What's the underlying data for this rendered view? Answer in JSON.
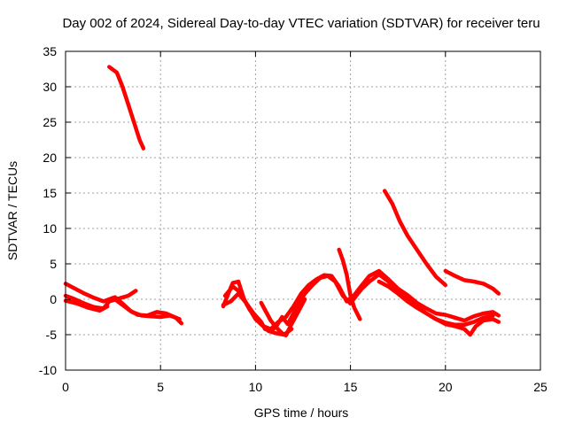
{
  "chart_data": {
    "type": "line",
    "title": "Day 002 of 2024, Sidereal Day-to-day VTEC variation (SDTVAR) for receiver teru",
    "xlabel": "GPS time / hours",
    "ylabel": "SDTVAR / TECUs",
    "xlim": [
      0,
      25
    ],
    "ylim": [
      -10,
      35
    ],
    "xticks": [
      0,
      5,
      10,
      15,
      20,
      25
    ],
    "yticks": [
      -10,
      -5,
      0,
      5,
      10,
      15,
      20,
      25,
      30,
      35
    ],
    "grid": true,
    "legend": "none",
    "color": "#ff0000",
    "series": [
      {
        "name": "s1",
        "x": [
          2.3,
          2.7,
          3.0,
          3.3,
          3.6,
          3.9,
          4.1
        ],
        "y": [
          32.8,
          32.0,
          30.0,
          27.5,
          25.0,
          22.5,
          21.3
        ]
      },
      {
        "name": "s2",
        "x": [
          0.0,
          0.5,
          1.0,
          1.5,
          2.0,
          2.5,
          3.0,
          3.5,
          4.0,
          4.5,
          5.0,
          5.5,
          6.0
        ],
        "y": [
          2.2,
          1.5,
          0.8,
          0.2,
          -0.3,
          0.2,
          -0.8,
          -1.8,
          -2.3,
          -2.4,
          -2.5,
          -2.3,
          -2.8
        ]
      },
      {
        "name": "s3",
        "x": [
          0.0,
          0.5,
          1.0,
          1.5,
          2.0,
          2.3,
          2.8,
          3.3,
          3.7
        ],
        "y": [
          0.5,
          0.0,
          -0.6,
          -1.1,
          -1.3,
          -0.3,
          0.1,
          0.5,
          1.2
        ]
      },
      {
        "name": "s4",
        "x": [
          0.0,
          0.6,
          1.2,
          1.8,
          2.2
        ],
        "y": [
          -0.2,
          -0.6,
          -1.2,
          -1.6,
          -1.0
        ]
      },
      {
        "name": "s5",
        "x": [
          2.6,
          3.0,
          3.4,
          3.8,
          4.3,
          4.8,
          5.3,
          5.8,
          6.1
        ],
        "y": [
          0.3,
          -0.6,
          -1.6,
          -2.2,
          -2.3,
          -1.8,
          -2.0,
          -2.6,
          -3.4
        ]
      },
      {
        "name": "s6",
        "x": [
          8.3,
          8.6,
          8.8,
          9.1,
          9.4,
          9.7,
          10.0,
          10.3,
          10.5,
          10.8,
          11.1,
          11.4,
          11.7,
          12.0,
          12.3,
          12.6,
          13.0,
          13.4,
          13.8,
          14.2,
          14.6,
          15.0,
          15.3,
          15.6,
          16.0,
          16.5,
          17.0,
          17.5,
          18.0,
          18.5,
          19.0,
          19.5,
          20.0,
          20.5,
          21.0,
          21.5,
          22.0,
          22.5
        ],
        "y": [
          -1.0,
          1.0,
          2.3,
          2.5,
          0.0,
          -1.5,
          -2.3,
          -3.2,
          -4.2,
          -4.5,
          -3.8,
          -2.5,
          -3.5,
          -2.0,
          -0.5,
          0.8,
          2.0,
          3.0,
          3.3,
          2.5,
          0.5,
          -0.6,
          0.5,
          1.5,
          2.5,
          3.5,
          2.5,
          1.0,
          0.0,
          -1.0,
          -2.0,
          -2.8,
          -3.3,
          -3.6,
          -3.6,
          -3.2,
          -2.6,
          -2.3
        ]
      },
      {
        "name": "s7",
        "x": [
          8.4,
          8.8,
          9.2,
          9.6,
          10.0,
          10.4,
          10.8,
          11.2,
          11.6,
          12.0,
          12.4,
          12.8,
          13.2,
          13.6,
          14.0,
          14.4,
          14.8,
          15.2,
          15.6,
          16.0,
          16.5,
          17.0,
          17.5,
          18.0,
          18.5,
          19.0,
          19.5,
          20.0,
          20.5,
          21.0,
          21.5,
          22.0,
          22.5,
          22.8
        ],
        "y": [
          0.5,
          1.8,
          1.0,
          -1.0,
          -2.8,
          -3.8,
          -4.2,
          -3.2,
          -2.5,
          -1.0,
          0.8,
          2.0,
          2.8,
          3.4,
          3.3,
          1.8,
          -0.3,
          0.6,
          2.0,
          3.3,
          4.0,
          2.8,
          1.5,
          0.6,
          -0.5,
          -1.3,
          -2.0,
          -2.2,
          -2.6,
          -3.0,
          -2.4,
          -2.0,
          -1.8,
          -2.3
        ]
      },
      {
        "name": "s8",
        "x": [
          8.3,
          8.7,
          9.1,
          9.5,
          9.9,
          10.3,
          10.7,
          11.1,
          11.5,
          11.9
        ],
        "y": [
          -0.8,
          -0.3,
          0.8,
          -0.5,
          -2.0,
          -3.5,
          -4.5,
          -4.8,
          -5.0,
          -4.2
        ]
      },
      {
        "name": "s9",
        "x": [
          10.3,
          10.5,
          10.8,
          11.1,
          11.4,
          11.6,
          11.9,
          12.3,
          12.6
        ],
        "y": [
          -0.5,
          -1.5,
          -3.0,
          -4.0,
          -4.8,
          -5.1,
          -3.5,
          -1.5,
          0.0
        ]
      },
      {
        "name": "s10",
        "x": [
          14.4,
          14.6,
          14.8,
          15.0,
          15.2,
          15.5
        ],
        "y": [
          7.0,
          5.5,
          3.5,
          0.5,
          -1.2,
          -2.8
        ]
      },
      {
        "name": "s11",
        "x": [
          16.8,
          17.2,
          17.6,
          18.0,
          18.5,
          19.0,
          19.5,
          20.0
        ],
        "y": [
          15.3,
          13.5,
          11.0,
          9.0,
          7.0,
          5.0,
          3.2,
          2.0
        ]
      },
      {
        "name": "s12",
        "x": [
          20.0,
          20.5,
          21.0,
          21.5,
          22.0,
          22.5,
          22.8
        ],
        "y": [
          4.0,
          3.3,
          2.7,
          2.5,
          2.2,
          1.5,
          0.8
        ]
      },
      {
        "name": "s13",
        "x": [
          16.5,
          17.0,
          17.5,
          18.0,
          18.5,
          19.0,
          19.5,
          20.0,
          20.5,
          21.0,
          21.3,
          21.6,
          22.0,
          22.5,
          22.8
        ],
        "y": [
          2.5,
          1.8,
          0.8,
          -0.3,
          -1.2,
          -2.0,
          -2.8,
          -3.5,
          -3.8,
          -4.2,
          -5.0,
          -3.8,
          -3.0,
          -2.8,
          -3.2
        ]
      }
    ]
  }
}
